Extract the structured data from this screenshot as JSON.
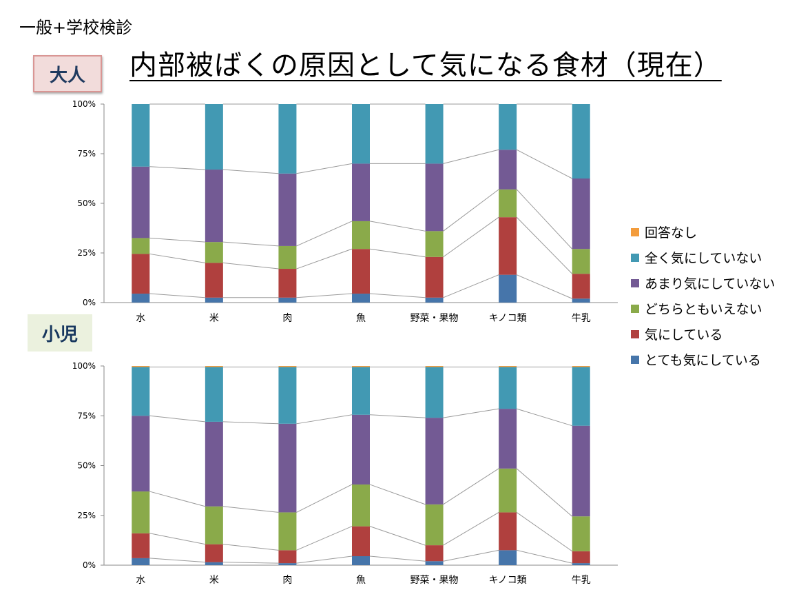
{
  "header": {
    "corner_label": "一般+学校検診",
    "title": "内部被ばくの原因として気になる食材（現在）"
  },
  "panels": {
    "adult_label": "大人",
    "child_label": "小児"
  },
  "colors": {
    "回答なし": "#f39c3c",
    "全く気にしていない": "#4299b3",
    "あまり気にしていない": "#735a94",
    "どちらともいえない": "#8aaa4a",
    "気にしている": "#b0403e",
    "とても気にしている": "#4675aa"
  },
  "chart_data": [
    {
      "type": "bar",
      "stacked": "percent",
      "categories": [
        "水",
        "米",
        "肉",
        "魚",
        "野菜・果物",
        "キノコ類",
        "牛乳"
      ],
      "ylim": [
        0,
        100
      ],
      "yticks": [
        "0%",
        "25%",
        "50%",
        "75%",
        "100%"
      ],
      "legend_position": "right",
      "series_lines": true,
      "series": [
        {
          "name": "とても気にしている",
          "values": [
            4.5,
            2.5,
            2.5,
            4.5,
            2.5,
            14,
            2
          ]
        },
        {
          "name": "気にしている",
          "values": [
            20,
            17.5,
            14.5,
            22.5,
            20.5,
            29,
            12.5
          ]
        },
        {
          "name": "どちらともいえない",
          "values": [
            8,
            10.5,
            11.5,
            14,
            13,
            14,
            12.5
          ]
        },
        {
          "name": "あまり気にしていない",
          "values": [
            36,
            36.5,
            36.5,
            29,
            34,
            20,
            35.5
          ]
        },
        {
          "name": "全く気にしていない",
          "values": [
            31.5,
            33,
            35,
            30,
            30,
            23,
            37.5
          ]
        },
        {
          "name": "回答なし",
          "values": [
            0,
            0,
            0,
            0,
            0,
            0,
            0
          ]
        }
      ]
    },
    {
      "type": "bar",
      "stacked": "percent",
      "categories": [
        "水",
        "米",
        "肉",
        "魚",
        "野菜・果物",
        "キノコ類",
        "牛乳"
      ],
      "ylim": [
        0,
        100
      ],
      "yticks": [
        "0%",
        "25%",
        "50%",
        "75%",
        "100%"
      ],
      "legend_position": "right",
      "series_lines": true,
      "series": [
        {
          "name": "とても気にしている",
          "values": [
            3.5,
            1.5,
            1,
            4.5,
            2,
            7.5,
            1
          ]
        },
        {
          "name": "気にしている",
          "values": [
            12.5,
            9,
            6.5,
            15,
            8,
            19,
            6
          ]
        },
        {
          "name": "どちらともいえない",
          "values": [
            21,
            19,
            19,
            21,
            20.5,
            22,
            17.5
          ]
        },
        {
          "name": "あまり気にしていない",
          "values": [
            38,
            42.5,
            44.5,
            35,
            43.5,
            30,
            45.5
          ]
        },
        {
          "name": "全く気にしていない",
          "values": [
            24.5,
            27.5,
            28.5,
            24,
            25.5,
            21,
            29.5
          ]
        },
        {
          "name": "回答なし",
          "values": [
            0.5,
            0.5,
            0.5,
            0.5,
            0.5,
            0.5,
            0.5
          ]
        }
      ]
    }
  ],
  "legend": [
    {
      "label": "回答なし",
      "color": "#f39c3c"
    },
    {
      "label": "全く気にしていない",
      "color": "#4299b3"
    },
    {
      "label": "あまり気にしていない",
      "color": "#735a94"
    },
    {
      "label": "どちらともいえない",
      "color": "#8aaa4a"
    },
    {
      "label": "気にしている",
      "color": "#b0403e"
    },
    {
      "label": "とても気にしている",
      "color": "#4675aa"
    }
  ]
}
